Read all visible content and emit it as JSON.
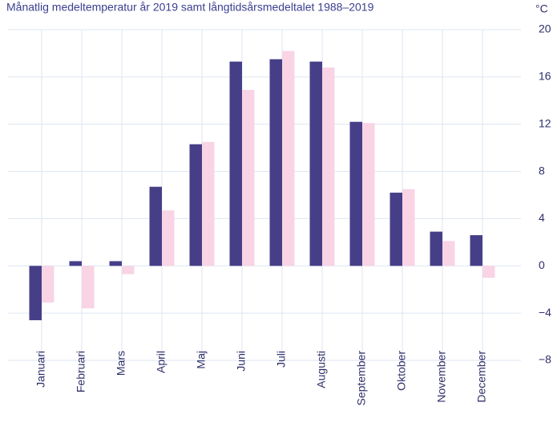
{
  "chart_data": {
    "type": "bar",
    "title": "Månatlig medeltemperatur år 2019 samt långtidsårsmedeltalet 1988–2019",
    "y_unit": "°C",
    "categories": [
      "Januari",
      "Februari",
      "Mars",
      "April",
      "Maj",
      "Juni",
      "Juli",
      "Augusti",
      "September",
      "Oktober",
      "November",
      "December"
    ],
    "series": [
      {
        "color": "#463f88",
        "values": [
          -4.6,
          0.4,
          0.4,
          6.7,
          10.3,
          17.3,
          17.5,
          17.3,
          12.2,
          6.2,
          2.9,
          2.6
        ]
      },
      {
        "color": "#f8d4e4",
        "values": [
          -3.1,
          -3.6,
          -0.7,
          4.7,
          10.5,
          14.9,
          18.2,
          16.8,
          12.1,
          6.5,
          2.1,
          -1.0
        ]
      }
    ],
    "ylim": [
      -8,
      20
    ],
    "yticks": [
      {
        "value": -8,
        "label": "−8"
      },
      {
        "value": -4,
        "label": "−4"
      },
      0,
      4,
      8,
      12,
      16,
      20
    ],
    "grid": true
  }
}
